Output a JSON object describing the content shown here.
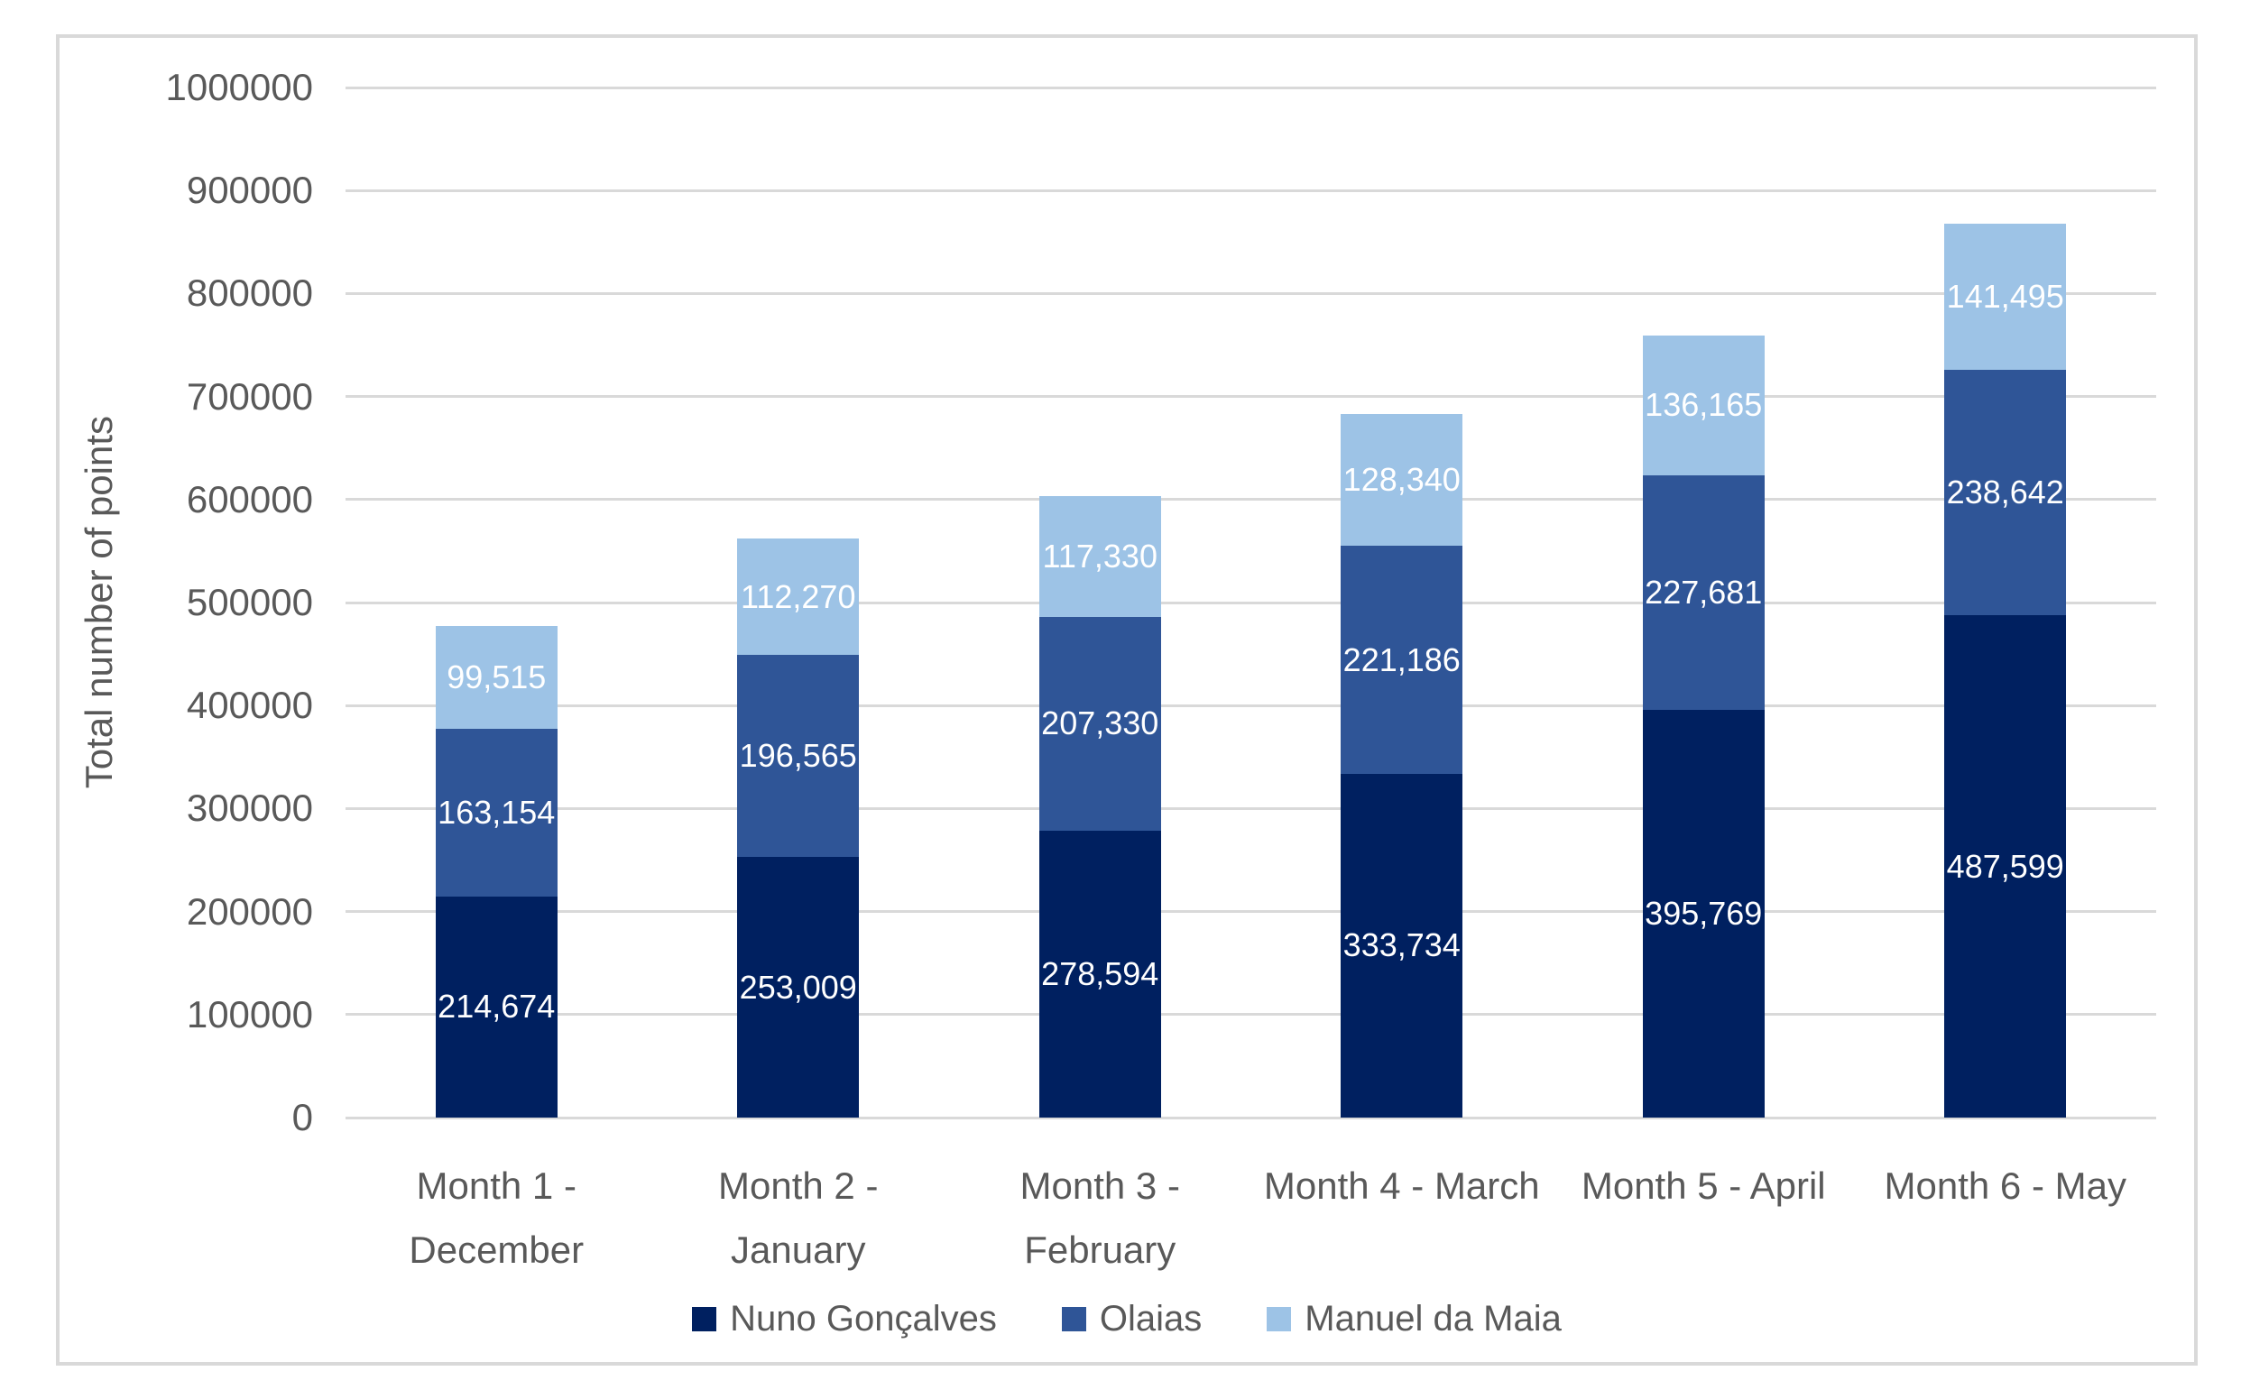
{
  "chart_data": {
    "type": "bar",
    "stacked": true,
    "title": "",
    "ylabel": "Total number of points",
    "xlabel": "",
    "ylim": [
      0,
      1000000
    ],
    "ytick_step": 100000,
    "grid": true,
    "legend_position": "bottom",
    "categories": [
      "Month 1 - December",
      "Month 2 - January",
      "Month 3 - February",
      "Month 4 - March",
      "Month 5 - April",
      "Month 6 - May"
    ],
    "category_lines": [
      [
        "Month 1 -",
        "December"
      ],
      [
        "Month 2 - January"
      ],
      [
        "Month 3 -",
        "February"
      ],
      [
        "Month 4 - March"
      ],
      [
        "Month 5 - April"
      ],
      [
        "Month 6 - May"
      ]
    ],
    "series": [
      {
        "name": "Nuno Gonçalves",
        "color": "#002060",
        "values": [
          214674,
          253009,
          278594,
          333734,
          395769,
          487599
        ]
      },
      {
        "name": "Olaias",
        "color": "#2F5597",
        "values": [
          163154,
          196565,
          207330,
          221186,
          227681,
          238642
        ]
      },
      {
        "name": "Manuel da Maia",
        "color": "#9DC3E6",
        "values": [
          99515,
          112270,
          117330,
          128340,
          136165,
          141495
        ]
      }
    ],
    "colors": {
      "grid": "#D9D9D9",
      "frame_border": "#D9D9D9",
      "axis_text": "#595959",
      "data_label_text": "#FFFFFF",
      "background": "#FFFFFF"
    }
  }
}
